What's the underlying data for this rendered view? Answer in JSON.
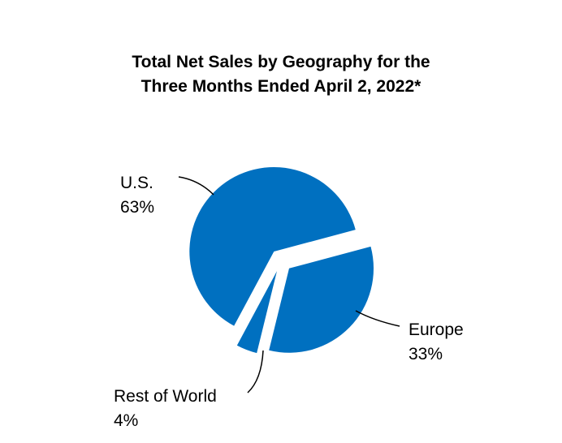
{
  "chart_data": {
    "type": "pie",
    "title_lines": [
      "Total Net Sales by Geography for the",
      "Three Months Ended April 2, 2022*"
    ],
    "slices": [
      {
        "name": "U.S.",
        "label": "63%",
        "value": 63
      },
      {
        "name": "Europe",
        "label": "33%",
        "value": 33
      },
      {
        "name": "Rest of World",
        "label": "4%",
        "value": 4
      }
    ],
    "slice_color": "#0070c0",
    "exploded": true,
    "legend": "none"
  }
}
